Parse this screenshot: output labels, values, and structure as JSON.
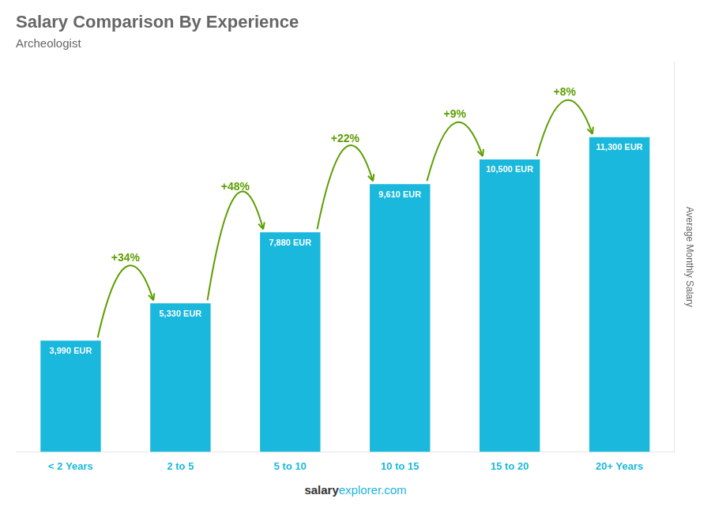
{
  "chart_data": {
    "type": "bar",
    "title": "Salary Comparison By Experience",
    "subtitle": "Archeologist",
    "ylabel": "Average Monthly Salary",
    "categories": [
      "< 2 Years",
      "2 to 5",
      "5 to 10",
      "10 to 15",
      "15 to 20",
      "20+ Years"
    ],
    "values": [
      3990,
      5330,
      7880,
      9610,
      10500,
      11300
    ],
    "value_labels": [
      "3,990 EUR",
      "5,330 EUR",
      "7,880 EUR",
      "9,610 EUR",
      "10,500 EUR",
      "11,300 EUR"
    ],
    "data_labels": true,
    "annotations": [
      "+34%",
      "+48%",
      "+22%",
      "+9%",
      "+8%"
    ],
    "footer": [
      "salary",
      "explorer.com"
    ],
    "color": "#1ab8dc",
    "ylim": [
      0,
      14000
    ],
    "grid": false,
    "tick_labels": "x"
  }
}
